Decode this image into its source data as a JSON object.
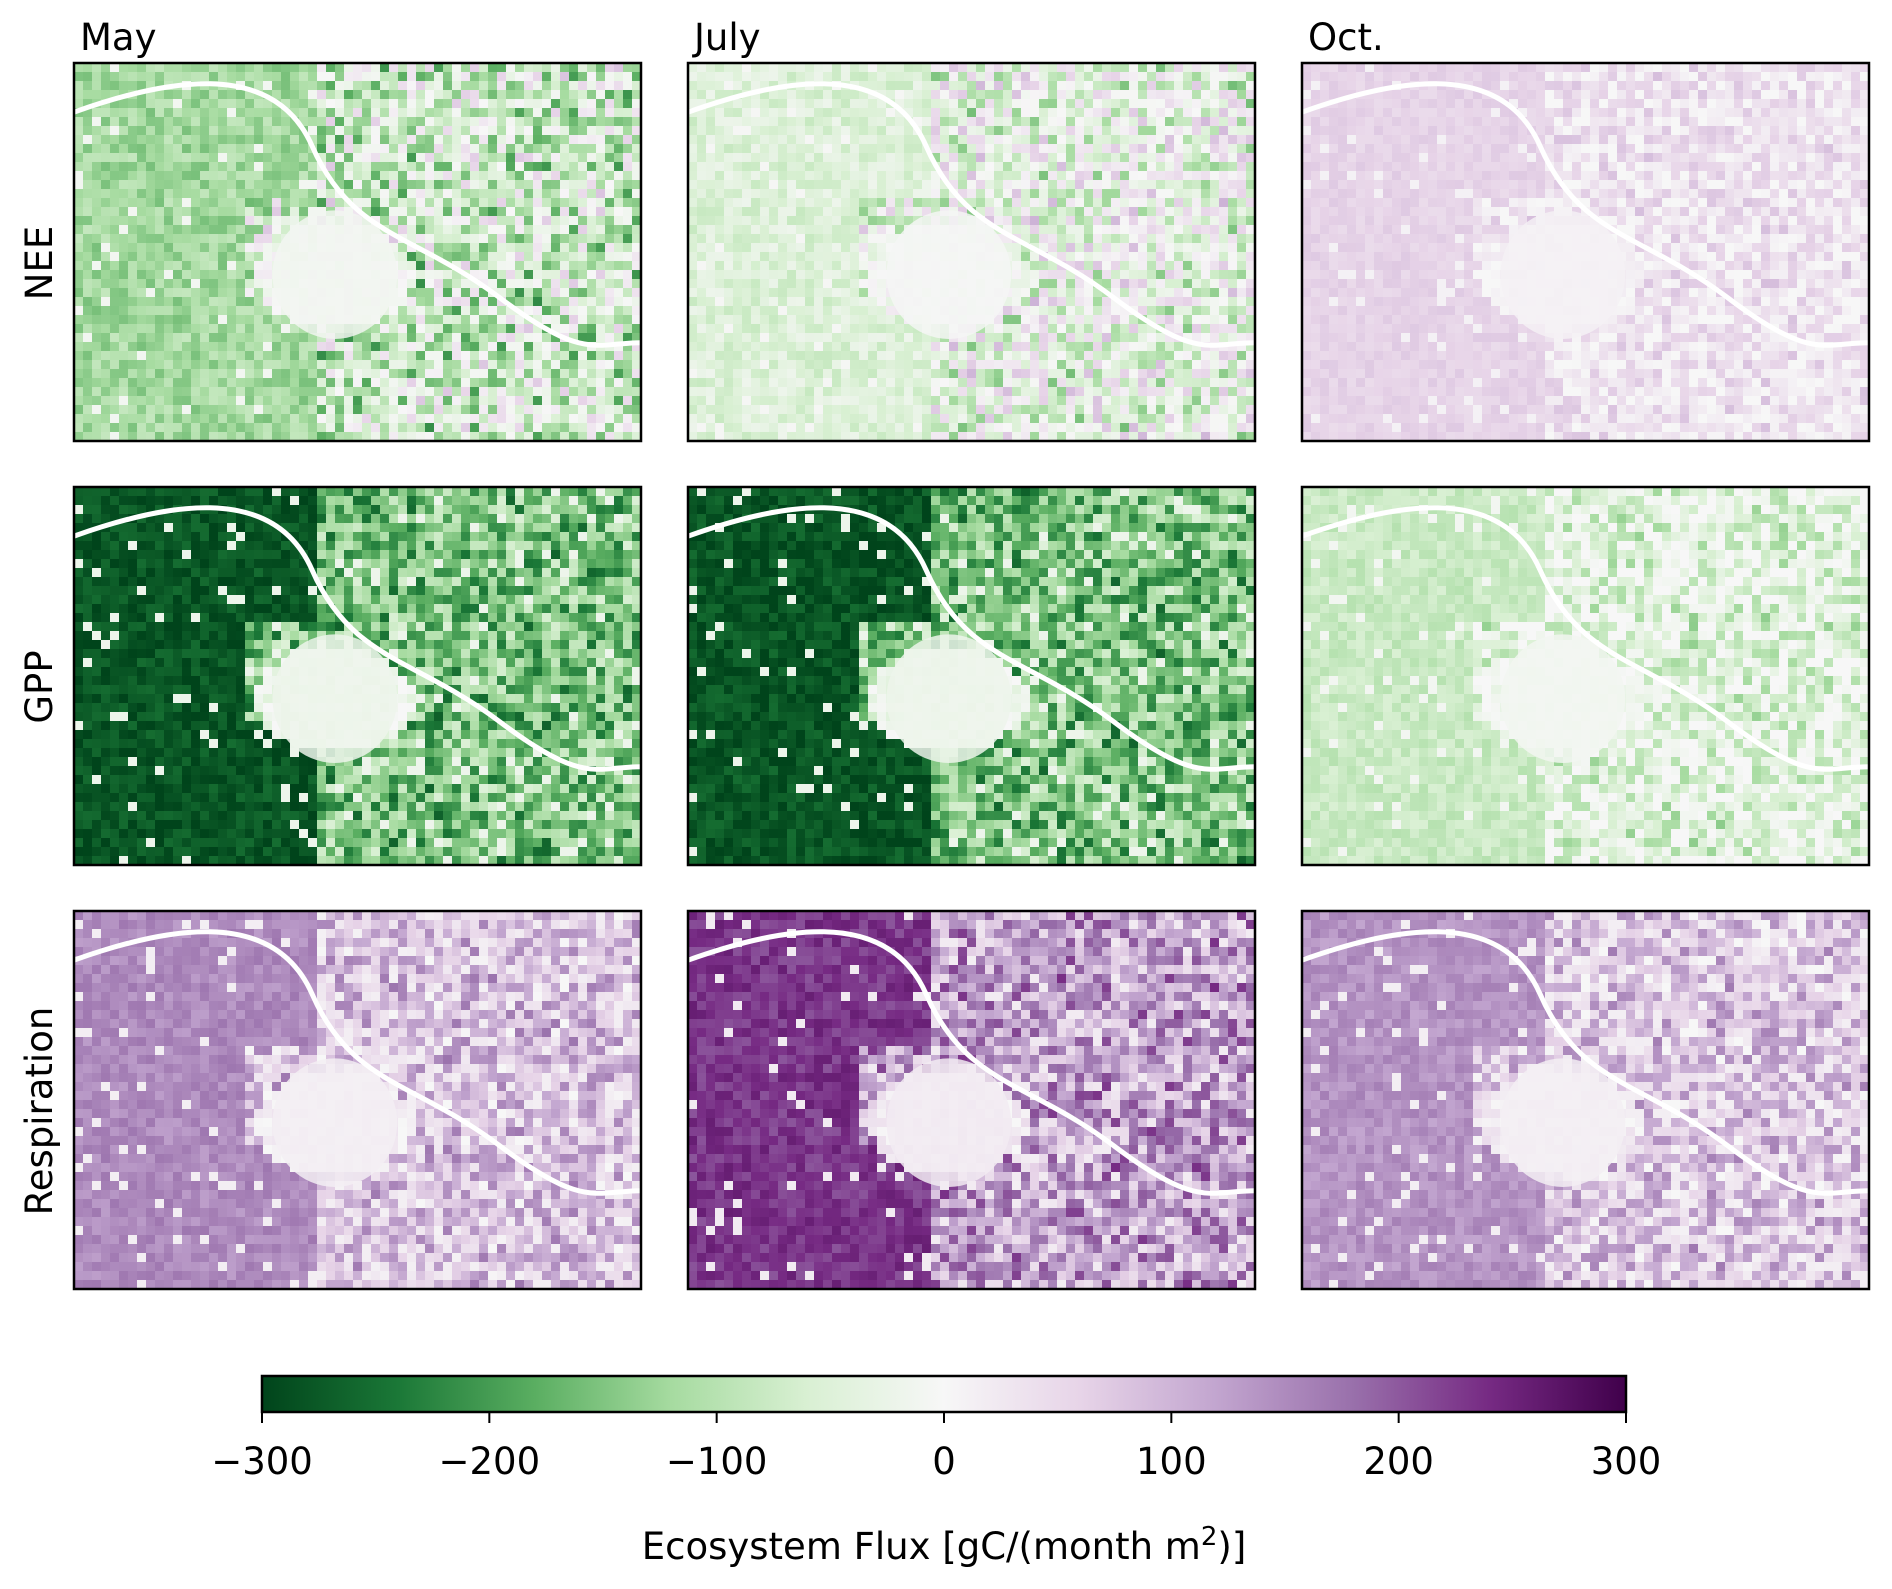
{
  "chart_data": {
    "type": "heatmap",
    "columns": [
      "May",
      "July",
      "Oct."
    ],
    "rows": [
      "NEE",
      "GPP",
      "Respiration"
    ],
    "panels": [
      {
        "row": "NEE",
        "column": "May",
        "flux_range": [
          -300,
          100
        ],
        "typical_flux": -120,
        "urban_flux": -10
      },
      {
        "row": "NEE",
        "column": "July",
        "flux_range": [
          -200,
          150
        ],
        "typical_flux": -50,
        "urban_flux": -5
      },
      {
        "row": "NEE",
        "column": "Oct.",
        "flux_range": [
          0,
          150
        ],
        "typical_flux": 60,
        "urban_flux": 10
      },
      {
        "row": "GPP",
        "column": "May",
        "flux_range": [
          -300,
          0
        ],
        "typical_flux": -280,
        "urban_flux": -20
      },
      {
        "row": "GPP",
        "column": "July",
        "flux_range": [
          -300,
          0
        ],
        "typical_flux": -280,
        "urban_flux": -20
      },
      {
        "row": "GPP",
        "column": "Oct.",
        "flux_range": [
          -250,
          0
        ],
        "typical_flux": -80,
        "urban_flux": -10
      },
      {
        "row": "Respiration",
        "column": "May",
        "flux_range": [
          0,
          250
        ],
        "typical_flux": 150,
        "urban_flux": 15
      },
      {
        "row": "Respiration",
        "column": "July",
        "flux_range": [
          0,
          300
        ],
        "typical_flux": 230,
        "urban_flux": 20
      },
      {
        "row": "Respiration",
        "column": "Oct.",
        "flux_range": [
          0,
          250
        ],
        "typical_flux": 140,
        "urban_flux": 15
      }
    ],
    "colorbar": {
      "colormap": "PRGn",
      "range": [
        -300,
        300
      ],
      "ticks": [
        -300,
        -200,
        -100,
        0,
        100,
        200,
        300
      ],
      "tick_labels": [
        "−300",
        "−200",
        "−100",
        "0",
        "100",
        "200",
        "300"
      ],
      "label_main": "Ecosystem Flux [gC/(month m",
      "label_sup": "2",
      "label_end": ")]"
    },
    "colors": {
      "negative_end": "#00441b",
      "positive_end": "#40004b",
      "zero": "#f7f7f7"
    }
  }
}
